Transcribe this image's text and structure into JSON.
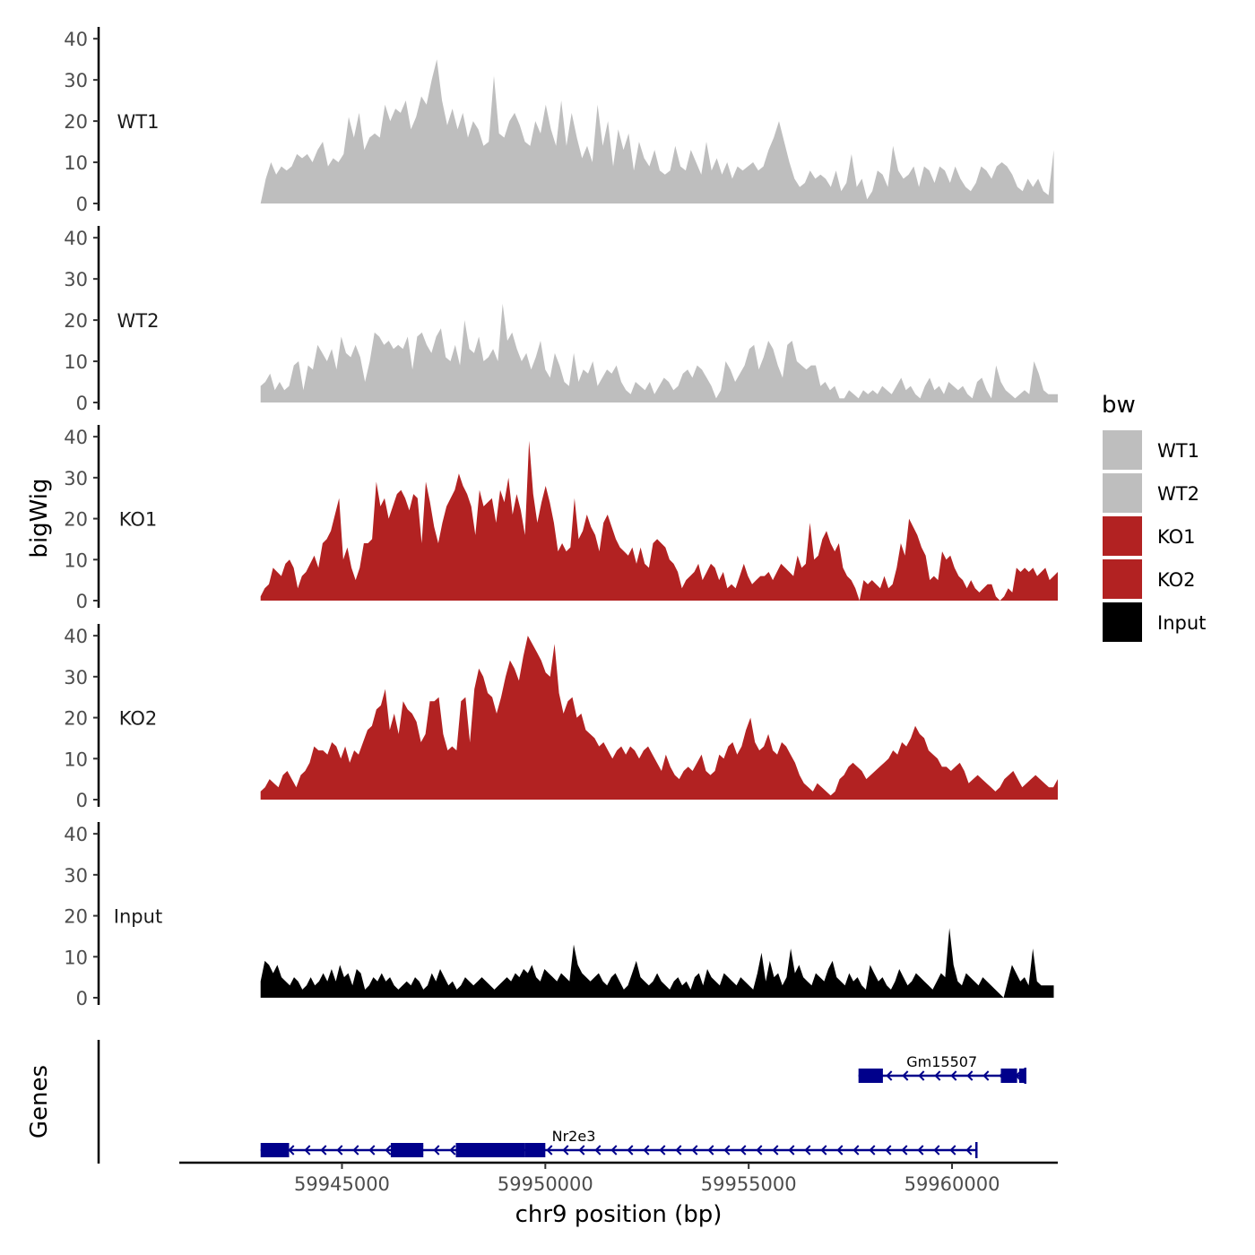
{
  "chart_data": {
    "type": "area",
    "xlabel": "chr9 position (bp)",
    "ylabel": "bigWig",
    "genes_label": "Genes",
    "xlim": [
      59941000,
      59962600
    ],
    "ylim": [
      0,
      42
    ],
    "x_ticks": [
      59945000,
      59950000,
      59955000,
      59960000
    ],
    "x_tick_labels": [
      "59945000",
      "59950000",
      "59955000",
      "59960000"
    ],
    "y_ticks": [
      0,
      10,
      20,
      30,
      40
    ],
    "y_tick_labels": [
      "0",
      "10",
      "20",
      "30",
      "40"
    ],
    "legend": {
      "title": "bw",
      "position": "right",
      "entries": [
        {
          "name": "WT1",
          "color": "#bebebe"
        },
        {
          "name": "WT2",
          "color": "#bebebe"
        },
        {
          "name": "KO1",
          "color": "#b22222"
        },
        {
          "name": "KO2",
          "color": "#b22222"
        },
        {
          "name": "Input",
          "color": "#000000"
        }
      ]
    },
    "series": [
      {
        "name": "WT1",
        "color": "#bebebe",
        "x_start": 59943000,
        "x_end": 59962500,
        "values": [
          0,
          6,
          10,
          7,
          9,
          8,
          9,
          12,
          11,
          12,
          10,
          13,
          15,
          9,
          11,
          10,
          12,
          21,
          16,
          22,
          13,
          16,
          17,
          16,
          24,
          20,
          23,
          22,
          25,
          18,
          21,
          26,
          24,
          30,
          35,
          25,
          19,
          23,
          18,
          22,
          16,
          20,
          18,
          14,
          15,
          31,
          17,
          16,
          20,
          22,
          19,
          15,
          14,
          20,
          17,
          24,
          18,
          14,
          25,
          14,
          22,
          16,
          11,
          14,
          10,
          24,
          14,
          20,
          9,
          18,
          13,
          17,
          8,
          15,
          11,
          9,
          13,
          8,
          7,
          8,
          14,
          9,
          8,
          13,
          10,
          7,
          15,
          8,
          11,
          7,
          10,
          6,
          9,
          8,
          9,
          10,
          8,
          9,
          13,
          16,
          20,
          15,
          10,
          6,
          4,
          5,
          8,
          6,
          7,
          6,
          4,
          8,
          3,
          5,
          12,
          4,
          6,
          1,
          3,
          8,
          7,
          4,
          14,
          8,
          6,
          7,
          9,
          4,
          9,
          8,
          5,
          9,
          8,
          5,
          9,
          6,
          4,
          3,
          5,
          9,
          8,
          6,
          9,
          10,
          9,
          7,
          4,
          3,
          6,
          4,
          6,
          3,
          2,
          13
        ]
      },
      {
        "name": "WT2",
        "color": "#bebebe",
        "x_start": 59943000,
        "x_end": 59962600,
        "values": [
          4,
          5,
          7,
          3,
          5,
          3,
          4,
          9,
          10,
          3,
          9,
          8,
          14,
          12,
          10,
          13,
          8,
          16,
          12,
          11,
          14,
          11,
          5,
          10,
          17,
          16,
          14,
          15,
          13,
          14,
          13,
          16,
          8,
          16,
          17,
          14,
          12,
          16,
          18,
          11,
          10,
          14,
          9,
          20,
          13,
          12,
          16,
          10,
          11,
          13,
          10,
          24,
          15,
          17,
          13,
          10,
          12,
          8,
          11,
          15,
          8,
          6,
          12,
          9,
          5,
          4,
          12,
          5,
          8,
          7,
          10,
          4,
          6,
          8,
          7,
          9,
          5,
          3,
          2,
          5,
          4,
          3,
          5,
          2,
          4,
          6,
          5,
          3,
          4,
          7,
          8,
          6,
          9,
          8,
          6,
          4,
          1,
          3,
          10,
          8,
          5,
          7,
          9,
          13,
          14,
          8,
          11,
          15,
          13,
          9,
          6,
          14,
          15,
          10,
          9,
          8,
          9,
          9,
          4,
          5,
          3,
          4,
          1,
          1,
          3,
          2,
          1,
          3,
          2,
          3,
          2,
          4,
          3,
          2,
          4,
          6,
          3,
          4,
          2,
          1,
          4,
          6,
          3,
          4,
          2,
          5,
          4,
          3,
          4,
          2,
          1,
          5,
          6,
          3,
          1,
          9,
          5,
          3,
          2,
          1,
          2,
          3,
          2,
          10,
          7,
          3,
          2,
          2,
          2
        ]
      },
      {
        "name": "KO1",
        "color": "#b22222",
        "x_start": 59943000,
        "x_end": 59962600,
        "values": [
          1,
          3,
          4,
          8,
          7,
          6,
          9,
          10,
          8,
          3,
          6,
          7,
          9,
          11,
          8,
          14,
          15,
          17,
          21,
          25,
          10,
          13,
          8,
          5,
          8,
          14,
          14,
          15,
          29,
          23,
          25,
          20,
          23,
          26,
          27,
          25,
          22,
          26,
          25,
          14,
          29,
          24,
          18,
          14,
          19,
          23,
          25,
          27,
          31,
          28,
          26,
          23,
          16,
          27,
          23,
          24,
          25,
          19,
          27,
          24,
          30,
          21,
          26,
          22,
          16,
          39,
          26,
          19,
          24,
          28,
          24,
          19,
          12,
          14,
          12,
          13,
          25,
          15,
          17,
          21,
          18,
          16,
          12,
          19,
          21,
          18,
          15,
          13,
          12,
          11,
          13,
          9,
          13,
          9,
          8,
          14,
          15,
          14,
          13,
          10,
          9,
          7,
          3,
          5,
          6,
          7,
          9,
          5,
          7,
          9,
          8,
          5,
          7,
          3,
          4,
          3,
          6,
          9,
          6,
          4,
          5,
          6,
          6,
          7,
          5,
          7,
          9,
          8,
          7,
          6,
          11,
          8,
          9,
          19,
          10,
          11,
          15,
          17,
          14,
          12,
          14,
          8,
          6,
          5,
          3,
          0,
          5,
          4,
          5,
          4,
          3,
          6,
          3,
          4,
          8,
          14,
          11,
          20,
          18,
          16,
          13,
          11,
          5,
          6,
          5,
          12,
          10,
          11,
          8,
          6,
          5,
          3,
          5,
          3,
          2,
          3,
          4,
          4,
          1,
          0,
          1,
          3,
          2,
          8,
          7,
          8,
          7,
          8,
          6,
          7,
          8,
          5,
          6,
          7
        ]
      },
      {
        "name": "KO2",
        "color": "#b22222",
        "x_start": 59943000,
        "x_end": 59962600,
        "values": [
          2,
          3,
          5,
          4,
          3,
          6,
          7,
          5,
          3,
          6,
          7,
          9,
          13,
          12,
          12,
          11,
          14,
          13,
          10,
          13,
          9,
          12,
          11,
          14,
          17,
          18,
          22,
          23,
          27,
          17,
          21,
          16,
          24,
          22,
          21,
          19,
          14,
          16,
          24,
          24,
          25,
          16,
          12,
          13,
          12,
          24,
          25,
          14,
          27,
          32,
          30,
          26,
          25,
          21,
          25,
          30,
          34,
          32,
          29,
          35,
          40,
          38,
          36,
          34,
          31,
          30,
          38,
          26,
          21,
          24,
          25,
          20,
          21,
          17,
          16,
          15,
          13,
          14,
          12,
          10,
          12,
          13,
          11,
          13,
          12,
          10,
          12,
          13,
          11,
          9,
          7,
          11,
          8,
          6,
          5,
          7,
          8,
          7,
          9,
          11,
          7,
          6,
          7,
          11,
          10,
          13,
          14,
          11,
          13,
          17,
          20,
          14,
          12,
          13,
          16,
          12,
          11,
          14,
          13,
          11,
          9,
          6,
          4,
          3,
          2,
          4,
          3,
          2,
          1,
          2,
          5,
          6,
          8,
          9,
          8,
          7,
          5,
          6,
          7,
          8,
          9,
          10,
          12,
          11,
          14,
          13,
          15,
          18,
          16,
          15,
          12,
          11,
          10,
          8,
          8,
          7,
          8,
          9,
          7,
          4,
          5,
          6,
          5,
          4,
          3,
          2,
          3,
          5,
          6,
          7,
          5,
          3,
          4,
          5,
          6,
          5,
          4,
          3,
          3,
          5
        ]
      },
      {
        "name": "Input",
        "color": "#000000",
        "x_start": 59943000,
        "x_end": 59962500,
        "values": [
          4,
          9,
          8,
          6,
          8,
          5,
          4,
          3,
          5,
          4,
          2,
          3,
          5,
          3,
          4,
          6,
          4,
          7,
          4,
          8,
          5,
          6,
          3,
          7,
          6,
          2,
          3,
          5,
          4,
          6,
          4,
          5,
          3,
          2,
          3,
          4,
          3,
          5,
          4,
          2,
          3,
          6,
          4,
          7,
          5,
          3,
          4,
          2,
          3,
          5,
          4,
          3,
          4,
          5,
          4,
          3,
          2,
          3,
          4,
          5,
          4,
          6,
          5,
          7,
          6,
          8,
          5,
          4,
          7,
          6,
          5,
          4,
          6,
          5,
          4,
          13,
          8,
          6,
          5,
          4,
          5,
          6,
          4,
          3,
          5,
          6,
          4,
          2,
          3,
          6,
          9,
          5,
          4,
          3,
          4,
          6,
          4,
          3,
          2,
          4,
          5,
          3,
          4,
          2,
          5,
          6,
          3,
          7,
          5,
          4,
          3,
          6,
          5,
          4,
          3,
          5,
          4,
          3,
          2,
          6,
          11,
          4,
          9,
          5,
          6,
          3,
          5,
          12,
          6,
          8,
          5,
          4,
          3,
          6,
          5,
          4,
          7,
          9,
          5,
          4,
          3,
          6,
          4,
          5,
          3,
          2,
          8,
          6,
          4,
          5,
          3,
          2,
          4,
          7,
          5,
          3,
          4,
          6,
          5,
          4,
          3,
          2,
          4,
          6,
          5,
          17,
          8,
          4,
          3,
          6,
          5,
          4,
          3,
          5,
          4,
          3,
          2,
          1,
          0,
          4,
          8,
          6,
          4,
          5,
          3,
          12,
          4,
          3,
          3,
          3,
          3
        ]
      }
    ],
    "genes": [
      {
        "name": "Gm15507",
        "strand": "-",
        "start": 59957700,
        "end": 59961800,
        "exons": [
          [
            59957700,
            59958300
          ],
          [
            59961200,
            59961600
          ],
          [
            59961650,
            59961800
          ]
        ]
      },
      {
        "name": "Nr2e3",
        "strand": "-",
        "start": 59943000,
        "end": 59960600,
        "exons": [
          [
            59943000,
            59943700
          ],
          [
            59946200,
            59947000
          ],
          [
            59947800,
            59949500
          ],
          [
            59949500,
            59950000
          ]
        ]
      }
    ]
  }
}
